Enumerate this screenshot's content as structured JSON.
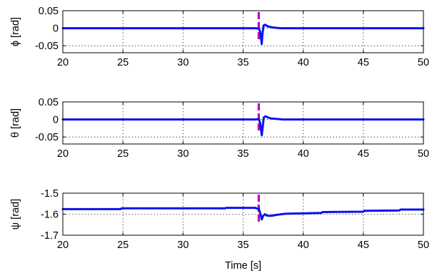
{
  "chart_data": [
    {
      "type": "line",
      "ylabel": "ϕ [rad]",
      "xlim": [
        20,
        50
      ],
      "ylim": [
        -0.07,
        0.05
      ],
      "xticks": [
        "20",
        "25",
        "30",
        "35",
        "40",
        "45",
        "50"
      ],
      "yticks": [
        "0.05",
        "0",
        "-0.05"
      ],
      "ytick_values": [
        0.05,
        0,
        -0.05
      ],
      "grid": "dotted",
      "event_marker": {
        "x": 36.3,
        "color": "#c000c0",
        "style": "dashed"
      },
      "series": [
        {
          "color": "#0a12ee",
          "x": [
            20,
            36.0,
            36.3,
            36.42,
            36.55,
            36.6,
            36.7,
            36.85,
            37.0,
            37.2,
            37.5,
            37.8,
            38.2,
            50
          ],
          "y": [
            0,
            0,
            -0.001,
            -0.01,
            -0.045,
            -0.02,
            0.008,
            0.01,
            0.006,
            0.004,
            0.002,
            0.001,
            0,
            0
          ]
        }
      ]
    },
    {
      "type": "line",
      "ylabel": "θ [rad]",
      "xlim": [
        20,
        50
      ],
      "ylim": [
        -0.07,
        0.05
      ],
      "xticks": [
        "20",
        "25",
        "30",
        "35",
        "40",
        "45",
        "50"
      ],
      "yticks": [
        "0.05",
        "0",
        "-0.05"
      ],
      "ytick_values": [
        0.05,
        0,
        -0.05
      ],
      "grid": "dotted",
      "event_marker": {
        "x": 36.3,
        "color": "#c000c0",
        "style": "dashed"
      },
      "series": [
        {
          "color": "#0a12ee",
          "x": [
            20,
            36.0,
            36.3,
            36.42,
            36.55,
            36.62,
            36.72,
            36.88,
            37.05,
            37.3,
            37.6,
            38.0,
            38.3,
            50
          ],
          "y": [
            0,
            0,
            0.001,
            -0.01,
            -0.045,
            -0.025,
            0.006,
            0.009,
            0.006,
            0.003,
            0.002,
            0.001,
            0,
            0
          ]
        }
      ]
    },
    {
      "type": "line",
      "ylabel": "ψ [rad]",
      "xlabel": "Time [s]",
      "xlim": [
        20,
        50
      ],
      "ylim": [
        -1.7,
        -1.5
      ],
      "xticks": [
        "20",
        "25",
        "30",
        "35",
        "40",
        "45",
        "50"
      ],
      "yticks": [
        "-1.5",
        "-1.6",
        "-1.7"
      ],
      "ytick_values": [
        -1.5,
        -1.6,
        -1.7
      ],
      "grid": "dotted",
      "event_marker": {
        "x": 36.3,
        "color": "#c000c0",
        "style": "dashed"
      },
      "series": [
        {
          "color": "#0a12ee",
          "x": [
            20,
            24.8,
            24.9,
            30,
            33.5,
            33.6,
            36.0,
            36.3,
            36.45,
            36.55,
            36.65,
            36.8,
            37.0,
            37.3,
            37.8,
            38.5,
            40.0,
            41.5,
            41.6,
            45.0,
            45.1,
            48.0,
            48.1,
            50
          ],
          "y": [
            -1.576,
            -1.576,
            -1.572,
            -1.572,
            -1.572,
            -1.57,
            -1.57,
            -1.575,
            -1.6,
            -1.625,
            -1.61,
            -1.6,
            -1.607,
            -1.608,
            -1.603,
            -1.598,
            -1.596,
            -1.594,
            -1.59,
            -1.588,
            -1.584,
            -1.582,
            -1.578,
            -1.578
          ]
        }
      ]
    }
  ]
}
